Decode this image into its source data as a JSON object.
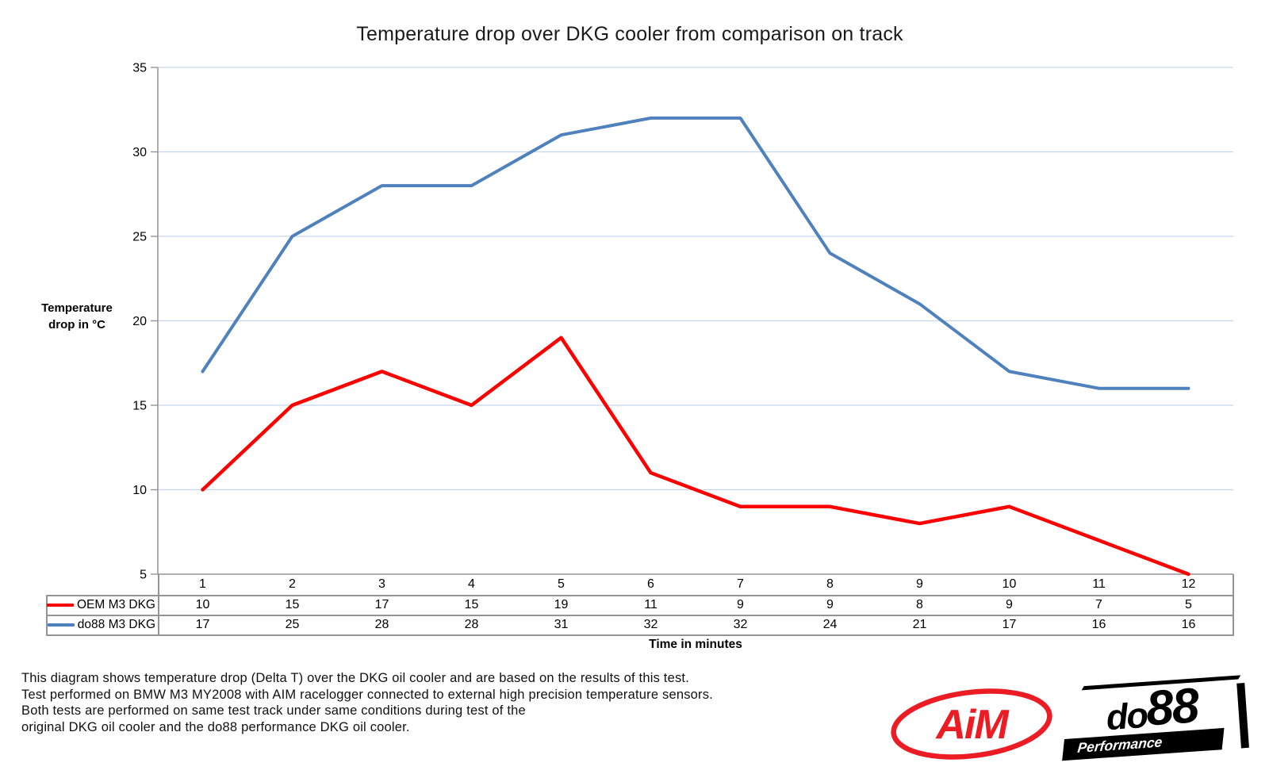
{
  "title": "Temperature drop over DKG cooler from comparison on track",
  "y_axis": {
    "label_line1": "Temperature",
    "label_line2": "drop in °C"
  },
  "x_axis": {
    "label": "Time in minutes"
  },
  "chart_data": {
    "type": "line",
    "categories": [
      "1",
      "2",
      "3",
      "4",
      "5",
      "6",
      "7",
      "8",
      "9",
      "10",
      "11",
      "12"
    ],
    "series": [
      {
        "name": "OEM M3 DKG",
        "color": "#fe0000",
        "values": [
          10,
          15,
          17,
          15,
          19,
          11,
          9,
          9,
          8,
          9,
          7,
          5
        ]
      },
      {
        "name": "do88 M3 DKG",
        "color": "#4f81bd",
        "values": [
          17,
          25,
          28,
          28,
          31,
          32,
          32,
          24,
          21,
          17,
          16,
          16
        ]
      }
    ],
    "title": "Temperature drop over DKG cooler from comparison on track",
    "xlabel": "Time in minutes",
    "ylabel": "Temperature drop in °C",
    "ylim": [
      5,
      35
    ],
    "ytick_step": 5,
    "grid": true,
    "legend_position": "table-left"
  },
  "footer": {
    "lines": [
      "This diagram shows temperature drop (Delta T) over the DKG oil cooler and are based on the results of this test.",
      "Test performed on BMW M3 MY2008 with AIM racelogger connected to external high precision temperature sensors.",
      "Both tests are performed on same test track under same conditions during test of the",
      "original DKG oil cooler and the do88 performance DKG oil cooler."
    ]
  },
  "logos": {
    "aim": {
      "text": "AiM",
      "color": "#ec1c24"
    },
    "do88": {
      "text_do": "do",
      "text_88": "88",
      "subtext": "Performance",
      "color": "#000000"
    }
  },
  "colors": {
    "grid": "#c6d5ee",
    "axis": "#949494",
    "table_border": "#949494",
    "background": "#ffffff"
  }
}
